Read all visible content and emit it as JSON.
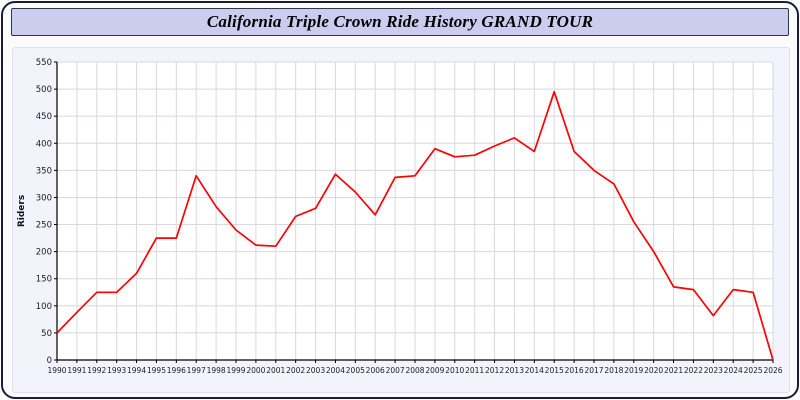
{
  "header": {
    "title": "California Triple Crown Ride History GRAND TOUR"
  },
  "colors": {
    "line": "#ff0000",
    "title_bar_bg": "#ccccee",
    "panel_bg": "#f3f3fb",
    "plot_bg": "#ffffff",
    "grid": "#d8d8e0",
    "axis": "#000000",
    "frame_border": "#1c1c3a"
  },
  "chart_data": {
    "type": "line",
    "title": "California Triple Crown Ride History GRAND TOUR",
    "xlabel": "",
    "ylabel": "Riders",
    "ylim": [
      0,
      550
    ],
    "ytick_step": 50,
    "grid": true,
    "legend": "none",
    "line_color": "#ff0000",
    "x": [
      1990,
      1991,
      1992,
      1993,
      1994,
      1995,
      1996,
      1997,
      1998,
      1999,
      2000,
      2001,
      2002,
      2003,
      2004,
      2005,
      2006,
      2007,
      2008,
      2009,
      2010,
      2011,
      2012,
      2013,
      2014,
      2015,
      2016,
      2017,
      2018,
      2019,
      2020,
      2021,
      2022,
      2023,
      2024,
      2025,
      2026
    ],
    "values": [
      50,
      88,
      125,
      125,
      160,
      225,
      225,
      340,
      283,
      240,
      212,
      210,
      265,
      280,
      343,
      310,
      268,
      337,
      340,
      390,
      375,
      378,
      395,
      410,
      385,
      495,
      385,
      350,
      325,
      255,
      200,
      135,
      130,
      82,
      130,
      125,
      0
    ]
  }
}
